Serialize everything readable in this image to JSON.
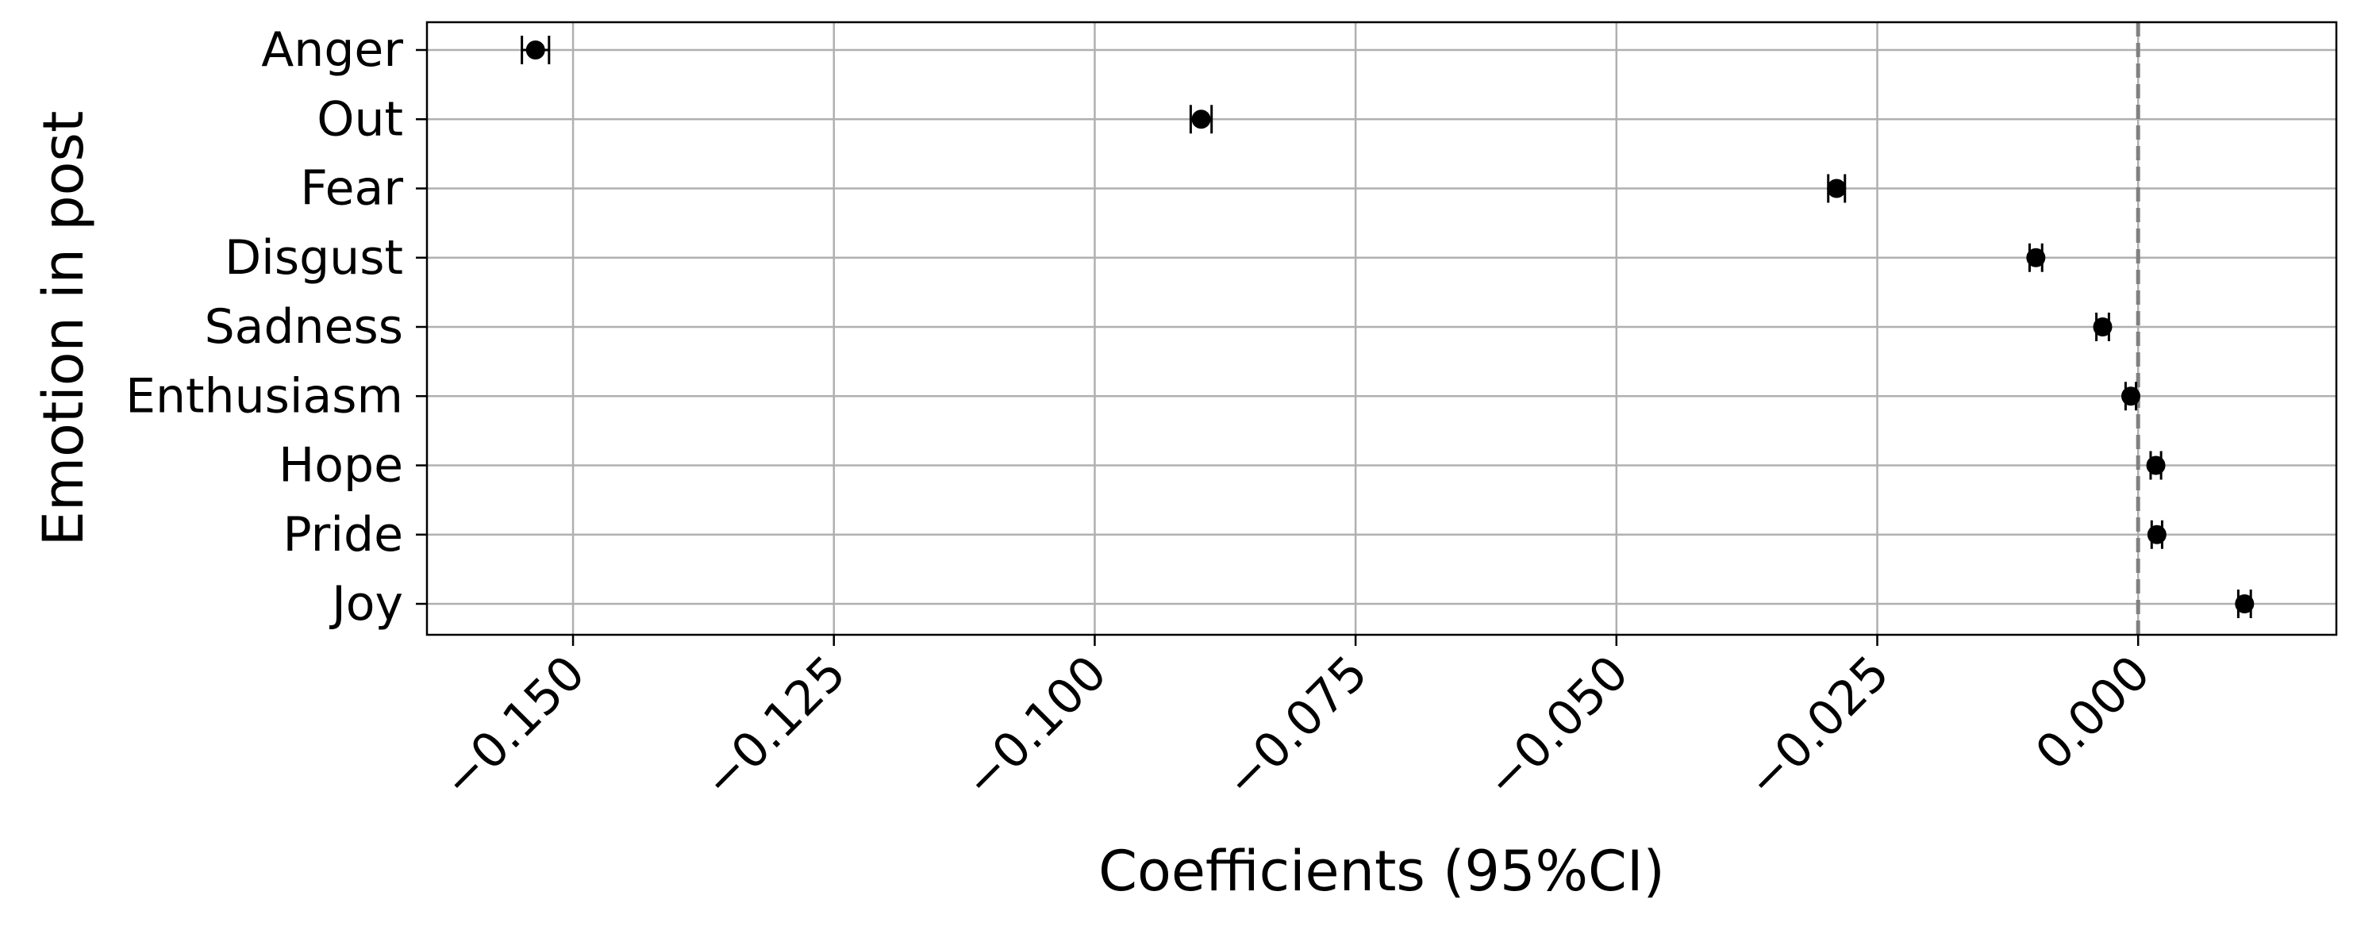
{
  "chart_data": {
    "type": "scatter",
    "subtype": "coefficient-plot-with-error-bars",
    "title": "",
    "xlabel": "Coefficients (95%CI)",
    "ylabel": "Emotion in post",
    "xlim": [
      -0.164,
      0.019
    ],
    "x_ticks": [
      -0.15,
      -0.125,
      -0.1,
      -0.075,
      -0.05,
      -0.025,
      0.0
    ],
    "x_tick_labels": [
      "−0.150",
      "−0.125",
      "−0.100",
      "−0.075",
      "−0.050",
      "−0.025",
      "0.000"
    ],
    "x_tick_rotation": 45,
    "categories": [
      "Anger",
      "Out",
      "Fear",
      "Disgust",
      "Sadness",
      "Enthusiasm",
      "Hope",
      "Pride",
      "Joy"
    ],
    "values": [
      -0.1536,
      -0.0898,
      -0.0289,
      -0.0098,
      -0.0034,
      -0.0007,
      0.0017,
      0.0018,
      0.0102
    ],
    "ci_lower": [
      -0.1549,
      -0.0908,
      -0.0297,
      -0.0104,
      -0.004,
      -0.0012,
      0.0012,
      0.0013,
      0.0096
    ],
    "ci_upper": [
      -0.1523,
      -0.0888,
      -0.0281,
      -0.0092,
      -0.0028,
      -0.0002,
      0.0022,
      0.0023,
      0.0108
    ],
    "reference_line": {
      "x": 0.0,
      "style": "dashed",
      "color": "#808080"
    },
    "grid": true,
    "marker_color": "#000000",
    "grid_color": "#b0b0b0"
  }
}
